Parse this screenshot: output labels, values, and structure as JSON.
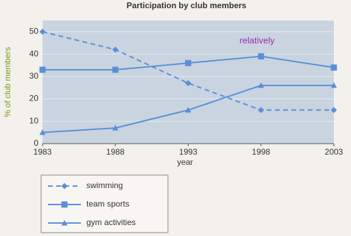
{
  "chart_data": {
    "type": "line",
    "title": "Participation by club members",
    "x": [
      1983,
      1988,
      1993,
      1998,
      2003
    ],
    "xlim": [
      1983,
      2003
    ],
    "xticks": [
      1983,
      1988,
      1993,
      1998,
      2003
    ],
    "ylim": [
      0,
      55
    ],
    "yticks": [
      0,
      10,
      20,
      30,
      40,
      50
    ],
    "x_label": "year",
    "y_label": "% of club members",
    "grid": true,
    "annotation": "relatively",
    "series": [
      {
        "name": "swimming",
        "color": "#5a8fd8",
        "line_style": "dashed",
        "marker": "diamond",
        "values": [
          50,
          42,
          27,
          15,
          15
        ]
      },
      {
        "name": "team sports",
        "color": "#5a8fd8",
        "line_style": "solid",
        "marker": "square",
        "values": [
          33,
          33,
          36,
          39,
          34
        ]
      },
      {
        "name": "gym activities",
        "color": "#5a8fd8",
        "line_style": "solid",
        "marker": "triangle",
        "values": [
          5,
          7,
          15,
          26,
          26
        ]
      }
    ]
  }
}
